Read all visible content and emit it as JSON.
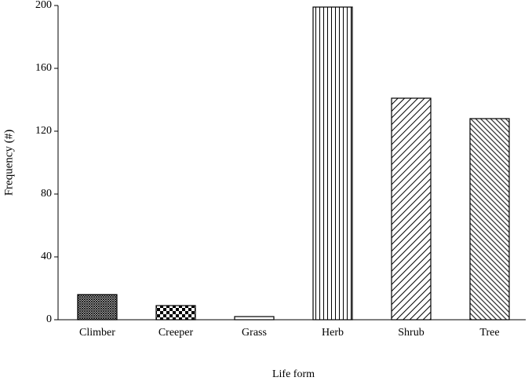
{
  "chart_data": {
    "type": "bar",
    "x_label": "Life form",
    "y_label": "Frequency (#)",
    "categories": [
      "Climber",
      "Creeper",
      "Grass",
      "Herb",
      "Shrub",
      "Tree"
    ],
    "values": [
      16,
      9,
      2,
      199,
      141,
      128
    ],
    "patterns": [
      "crosshatch",
      "checker",
      "none",
      "vertical",
      "diagonal",
      "diagonal-dense"
    ],
    "color": "#000000",
    "ylim": [
      0,
      200
    ],
    "yticks": [
      0,
      40,
      80,
      120,
      160,
      200
    ],
    "grid": false
  }
}
